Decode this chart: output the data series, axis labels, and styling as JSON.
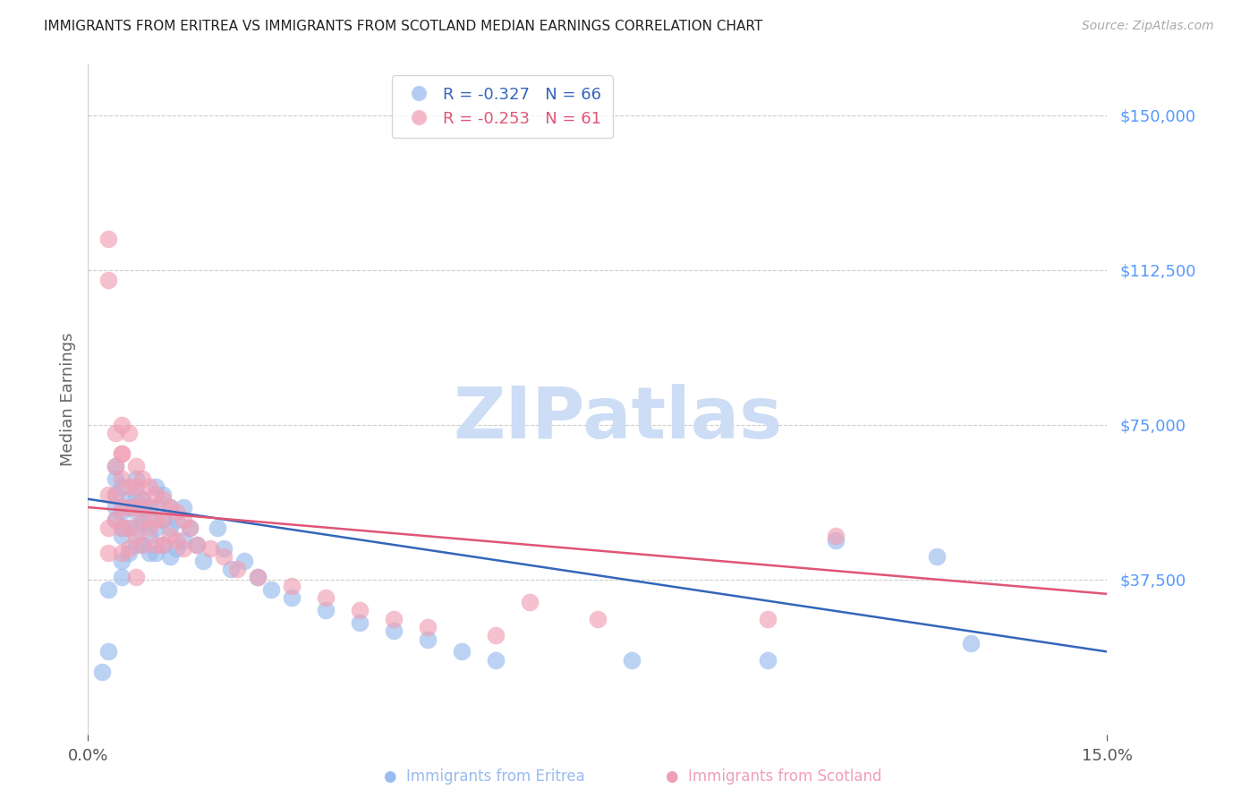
{
  "title": "IMMIGRANTS FROM ERITREA VS IMMIGRANTS FROM SCOTLAND MEDIAN EARNINGS CORRELATION CHART",
  "source": "Source: ZipAtlas.com",
  "ylabel": "Median Earnings",
  "xlim": [
    0.0,
    0.15
  ],
  "ylim": [
    0,
    162500
  ],
  "ytick_vals": [
    37500,
    75000,
    112500,
    150000
  ],
  "ytick_labels": [
    "$37,500",
    "$75,000",
    "$112,500",
    "$150,000"
  ],
  "xtick_vals": [
    0.0,
    0.15
  ],
  "xtick_labels": [
    "0.0%",
    "15.0%"
  ],
  "background_color": "#ffffff",
  "grid_color": "#cccccc",
  "title_color": "#222222",
  "source_color": "#aaaaaa",
  "axis_label_color": "#666666",
  "ytick_color": "#5599ff",
  "xtick_color": "#555555",
  "watermark": "ZIPatlas",
  "watermark_color": "#ccddf5",
  "watermark_fontsize": 58,
  "eritrea_color": "#99bbee",
  "eritrea_trend_color": "#3366bb",
  "eritrea_R": "-0.327",
  "eritrea_N": "66",
  "eritrea_x": [
    0.002,
    0.003,
    0.003,
    0.004,
    0.004,
    0.004,
    0.004,
    0.004,
    0.005,
    0.005,
    0.005,
    0.005,
    0.005,
    0.005,
    0.006,
    0.006,
    0.006,
    0.006,
    0.007,
    0.007,
    0.007,
    0.007,
    0.007,
    0.008,
    0.008,
    0.008,
    0.008,
    0.009,
    0.009,
    0.009,
    0.009,
    0.01,
    0.01,
    0.01,
    0.01,
    0.011,
    0.011,
    0.011,
    0.012,
    0.012,
    0.012,
    0.013,
    0.013,
    0.014,
    0.014,
    0.015,
    0.016,
    0.017,
    0.019,
    0.02,
    0.021,
    0.023,
    0.025,
    0.027,
    0.03,
    0.035,
    0.04,
    0.045,
    0.05,
    0.055,
    0.06,
    0.08,
    0.1,
    0.11,
    0.125,
    0.13
  ],
  "eritrea_y": [
    15000,
    20000,
    35000,
    58000,
    62000,
    55000,
    65000,
    52000,
    60000,
    54000,
    50000,
    48000,
    42000,
    38000,
    57000,
    55000,
    50000,
    44000,
    62000,
    58000,
    54000,
    50000,
    46000,
    57000,
    55000,
    51000,
    46000,
    55000,
    52000,
    48000,
    44000,
    60000,
    55000,
    50000,
    44000,
    58000,
    52000,
    46000,
    55000,
    50000,
    43000,
    52000,
    45000,
    55000,
    47000,
    50000,
    46000,
    42000,
    50000,
    45000,
    40000,
    42000,
    38000,
    35000,
    33000,
    30000,
    27000,
    25000,
    23000,
    20000,
    18000,
    18000,
    18000,
    47000,
    43000,
    22000
  ],
  "eritrea_trend_x": [
    0.0,
    0.15
  ],
  "eritrea_trend_y": [
    57000,
    20000
  ],
  "scotland_color": "#f0a0b5",
  "scotland_trend_color": "#e05575",
  "scotland_R": "-0.253",
  "scotland_N": "61",
  "scotland_x": [
    0.003,
    0.003,
    0.003,
    0.004,
    0.004,
    0.004,
    0.005,
    0.005,
    0.005,
    0.005,
    0.005,
    0.006,
    0.006,
    0.006,
    0.006,
    0.007,
    0.007,
    0.007,
    0.007,
    0.008,
    0.008,
    0.008,
    0.008,
    0.009,
    0.009,
    0.009,
    0.01,
    0.01,
    0.01,
    0.011,
    0.011,
    0.011,
    0.012,
    0.012,
    0.013,
    0.013,
    0.014,
    0.014,
    0.015,
    0.016,
    0.018,
    0.02,
    0.022,
    0.025,
    0.03,
    0.035,
    0.04,
    0.045,
    0.05,
    0.06,
    0.065,
    0.075,
    0.1,
    0.11,
    0.003,
    0.003,
    0.004,
    0.005,
    0.005,
    0.006,
    0.007
  ],
  "scotland_y": [
    58000,
    50000,
    44000,
    65000,
    58000,
    52000,
    68000,
    62000,
    55000,
    50000,
    44000,
    60000,
    55000,
    50000,
    45000,
    65000,
    60000,
    55000,
    48000,
    62000,
    57000,
    52000,
    46000,
    60000,
    55000,
    50000,
    58000,
    52000,
    46000,
    57000,
    52000,
    46000,
    55000,
    48000,
    54000,
    47000,
    52000,
    45000,
    50000,
    46000,
    45000,
    43000,
    40000,
    38000,
    36000,
    33000,
    30000,
    28000,
    26000,
    24000,
    32000,
    28000,
    28000,
    48000,
    120000,
    110000,
    73000,
    75000,
    68000,
    73000,
    38000
  ],
  "scotland_trend_x": [
    0.0,
    0.15
  ],
  "scotland_trend_y": [
    55000,
    34000
  ]
}
